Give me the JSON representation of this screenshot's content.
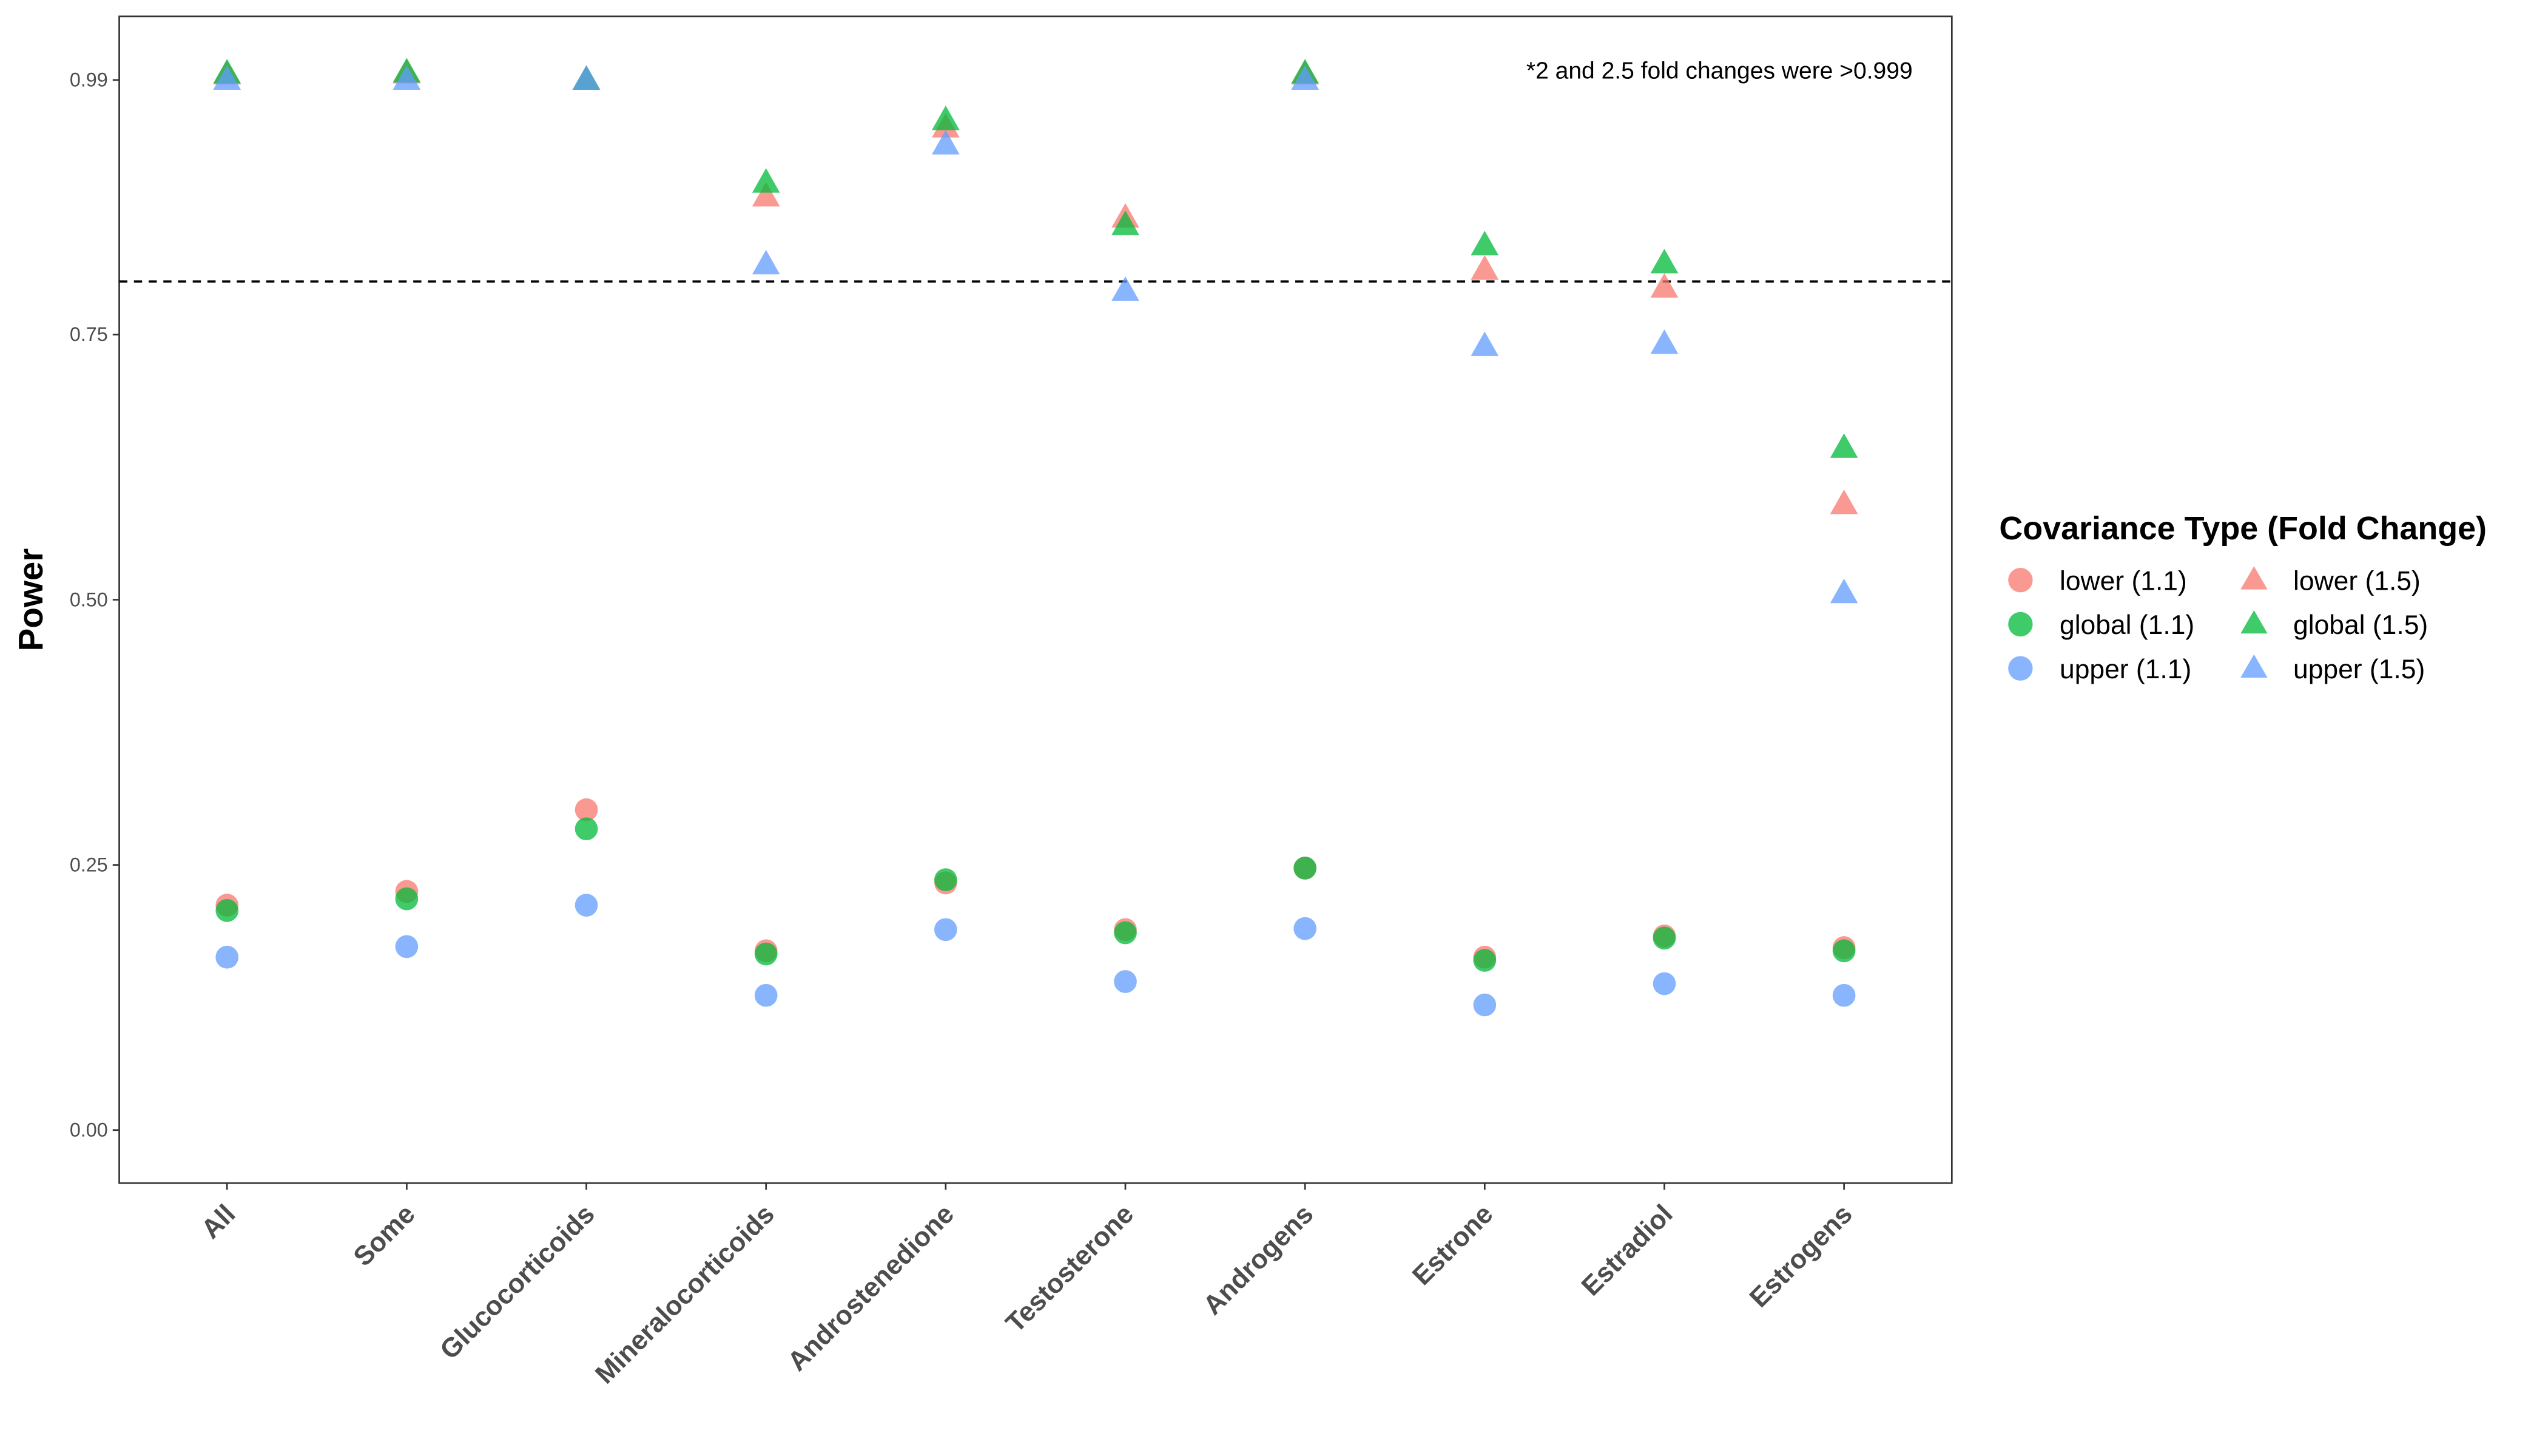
{
  "chart_data": {
    "type": "scatter",
    "title": "",
    "xlabel": "",
    "ylabel": "Power",
    "ylim": [
      -0.05,
      1.05
    ],
    "yticks": [
      0.0,
      0.25,
      0.5,
      0.75,
      0.99
    ],
    "ytick_labels": [
      "0.00",
      "0.25",
      "0.50",
      "0.75",
      "0.99"
    ],
    "grid": false,
    "reference_line": 0.8,
    "annotation": "*2 and 2.5 fold changes were >0.999",
    "categories": [
      "All",
      "Some",
      "Glucocorticoids",
      "Mineralocorticoids",
      "Androstenedione",
      "Testosterone",
      "Androgens",
      "Estrone",
      "Estradiol",
      "Estrogens"
    ],
    "legend": {
      "title": "Covariance Type (Fold Change)",
      "placement": "right"
    },
    "series": [
      {
        "name": "lower (1.1)",
        "shape": "circle",
        "color": "#F8766D",
        "values": [
          0.212,
          0.225,
          0.302,
          0.169,
          0.233,
          0.189,
          0.247,
          0.163,
          0.183,
          0.172
        ]
      },
      {
        "name": "global (1.1)",
        "shape": "circle",
        "color": "#00BA38",
        "values": [
          0.207,
          0.218,
          0.284,
          0.166,
          0.236,
          0.186,
          0.247,
          0.16,
          0.181,
          0.169
        ]
      },
      {
        "name": "upper (1.1)",
        "shape": "circle",
        "color": "#619CFF",
        "values": [
          0.163,
          0.173,
          0.212,
          0.127,
          0.189,
          0.14,
          0.19,
          0.118,
          0.138,
          0.127
        ]
      },
      {
        "name": "lower (1.5)",
        "shape": "triangle",
        "color": "#F8766D",
        "values": [
          0.995,
          0.996,
          0.99,
          0.88,
          0.945,
          0.86,
          0.995,
          0.811,
          0.794,
          0.59
        ]
      },
      {
        "name": "global (1.5)",
        "shape": "triangle",
        "color": "#00BA38",
        "values": [
          0.996,
          0.997,
          0.99,
          0.893,
          0.952,
          0.853,
          0.996,
          0.834,
          0.817,
          0.643
        ]
      },
      {
        "name": "upper (1.5)",
        "shape": "triangle",
        "color": "#619CFF",
        "values": [
          0.99,
          0.99,
          0.99,
          0.816,
          0.929,
          0.791,
          0.99,
          0.739,
          0.741,
          0.506
        ]
      }
    ]
  }
}
